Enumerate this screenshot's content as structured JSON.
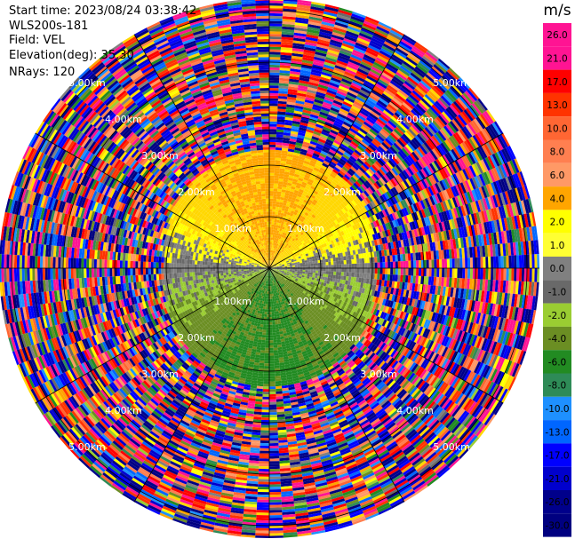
{
  "header": {
    "start_time": "Start time: 2023/08/24 03:38:42",
    "instrument": "WLS200s-181",
    "field": "Field: VEL",
    "elevation": "Elevation(deg): 35.30",
    "nrays": "NRays: 120"
  },
  "colorbar": {
    "unit": "m/s",
    "ticks": [
      "26.0",
      "21.0",
      "17.0",
      "13.0",
      "10.0",
      "8.0",
      "6.0",
      "4.0",
      "2.0",
      "1.0",
      "0.0",
      "-1.0",
      "-2.0",
      "-4.0",
      "-6.0",
      "-8.0",
      "-10.0",
      "-13.0",
      "-17.0",
      "-21.0",
      "-26.0",
      "-30.0"
    ],
    "colors": [
      "#ff1493",
      "#ff1493",
      "#ff0000",
      "#ff3300",
      "#ff6633",
      "#ff7f50",
      "#ff9966",
      "#ffa500",
      "#ffff00",
      "#ffff33",
      "#808080",
      "#696969",
      "#9acd32",
      "#6b8e23",
      "#228b22",
      "#2e8b57",
      "#1e90ff",
      "#0066ff",
      "#0000ff",
      "#0000cd",
      "#00008b",
      "#000080"
    ]
  },
  "chart_data": {
    "type": "ppi",
    "field": "VEL",
    "units": "m/s",
    "n_rays": 120,
    "elevation_deg": 35.3,
    "range_ring_labels": [
      "1.00km",
      "2.00km",
      "3.00km",
      "4.00km",
      "5.00km"
    ],
    "range_km": [
      0,
      5.4
    ],
    "value_range": [
      -30.0,
      26.0
    ],
    "pattern": {
      "near_field_north": "positive velocities (2 to 6 m/s, yellow-orange)",
      "near_field_south": "negative velocities (-2 to -6 m/s, green)",
      "near_field_west_east": "near zero (gray)",
      "far_field": "noise (mixed colors across full range)"
    }
  }
}
